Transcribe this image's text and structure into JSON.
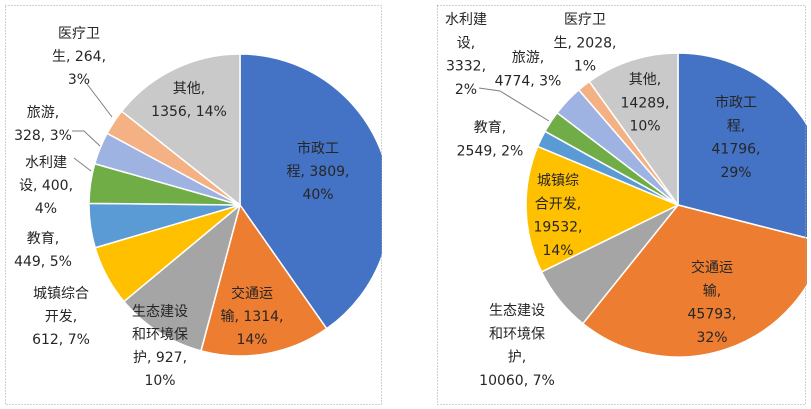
{
  "chart_data": [
    {
      "type": "pie",
      "categories": [
        "市政工程",
        "交通运输",
        "生态建设和环境保护",
        "城镇综合开发",
        "教育",
        "水利建设",
        "旅游",
        "医疗卫生",
        "其他"
      ],
      "values": [
        3809,
        1314,
        927,
        612,
        449,
        400,
        328,
        264,
        1356
      ],
      "percents": [
        40,
        14,
        10,
        7,
        5,
        4,
        3,
        3,
        14
      ],
      "colors": [
        "#4472C4",
        "#ED7D31",
        "#A5A5A5",
        "#FFC000",
        "#5B9BD5",
        "#70AD47",
        "#9FB3E3",
        "#F4B183",
        "#C9C9C9"
      ]
    },
    {
      "type": "pie",
      "categories": [
        "市政工程",
        "交通运输",
        "生态建设和环境保护",
        "城镇综合开发",
        "教育",
        "水利建设",
        "旅游",
        "医疗卫生",
        "其他"
      ],
      "values": [
        41796,
        45793,
        10060,
        19532,
        2549,
        3332,
        4774,
        2028,
        14289
      ],
      "percents": [
        29,
        32,
        7,
        14,
        2,
        2,
        3,
        1,
        10
      ],
      "colors": [
        "#4472C4",
        "#ED7D31",
        "#A5A5A5",
        "#FFC000",
        "#5B9BD5",
        "#70AD47",
        "#9FB3E3",
        "#F4B183",
        "#C9C9C9"
      ]
    }
  ]
}
